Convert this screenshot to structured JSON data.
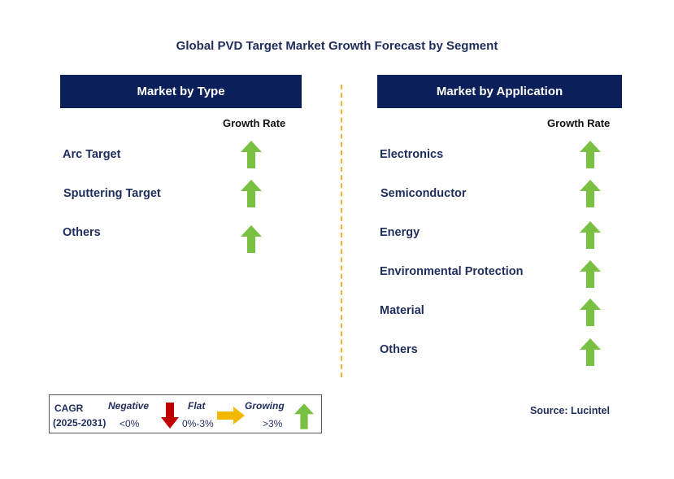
{
  "title": "Global PVD Target Market Growth Forecast by Segment",
  "left_panel": {
    "header": "Market by Type",
    "growth_rate_label": "Growth Rate",
    "items": [
      {
        "label": "Arc Target",
        "trend": "growing"
      },
      {
        "label": "Sputtering Target",
        "trend": "growing"
      },
      {
        "label": "Others",
        "trend": "growing"
      }
    ]
  },
  "right_panel": {
    "header": "Market by Application",
    "growth_rate_label": "Growth Rate",
    "items": [
      {
        "label": "Electronics",
        "trend": "growing"
      },
      {
        "label": "Semiconductor",
        "trend": "growing"
      },
      {
        "label": "Energy",
        "trend": "growing"
      },
      {
        "label": "Environmental Protection",
        "trend": "growing"
      },
      {
        "label": "Material",
        "trend": "growing"
      },
      {
        "label": "Others",
        "trend": "growing"
      }
    ]
  },
  "legend": {
    "cagr_label": "CAGR",
    "period": "(2025-2031)",
    "negative_label": "Negative",
    "negative_range": "<0%",
    "flat_label": "Flat",
    "flat_range": "0%-3%",
    "growing_label": "Growing",
    "growing_range": ">3%"
  },
  "source": "Source: Lucintel",
  "colors": {
    "header_bg": "#0b1f5a",
    "text": "#1f2d5c",
    "growing_arrow": "#7ac143",
    "negative_arrow": "#c00000",
    "flat_arrow": "#f5b800",
    "divider": "#f0b030"
  }
}
